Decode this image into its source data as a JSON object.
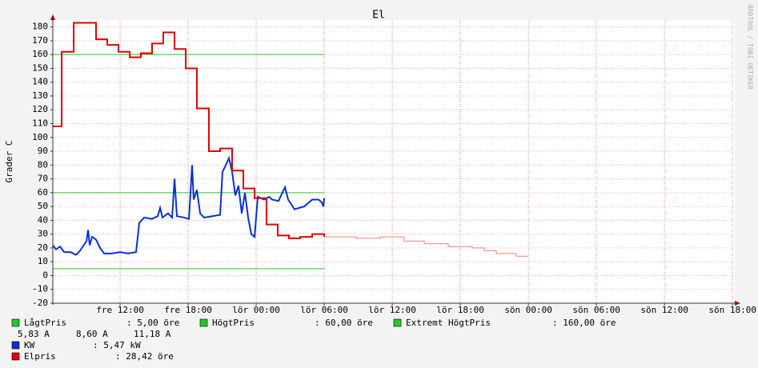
{
  "chart_data": {
    "type": "line",
    "title": "El",
    "y_label": "Grader C",
    "watermark": "RRDTOOL / TOBI OETIKER",
    "xlim": [
      6.07,
      66.2
    ],
    "ylim": [
      -20,
      185
    ],
    "xticks": [
      {
        "value": 12,
        "label": "fre 12:00"
      },
      {
        "value": 18,
        "label": "fre 18:00"
      },
      {
        "value": 24,
        "label": "lör 00:00"
      },
      {
        "value": 30,
        "label": "lör 06:00"
      },
      {
        "value": 36,
        "label": "lör 12:00"
      },
      {
        "value": 42,
        "label": "lör 18:00"
      },
      {
        "value": 48,
        "label": "sön 00:00"
      },
      {
        "value": 54,
        "label": "sön 06:00"
      },
      {
        "value": 60,
        "label": "sön 12:00"
      },
      {
        "value": 66,
        "label": "sön 18:00"
      }
    ],
    "yticks": [
      -20,
      -10,
      0,
      10,
      20,
      30,
      40,
      50,
      60,
      70,
      80,
      90,
      100,
      110,
      120,
      130,
      140,
      150,
      160,
      170,
      180
    ],
    "grid": true,
    "series": [
      {
        "name": "LågtPris",
        "legend_value": ": 5,00 öre",
        "color": "#22cc22",
        "x": [
          6.07,
          30.0
        ],
        "values": [
          5,
          5
        ]
      },
      {
        "name": "HögtPris",
        "legend_value": ": 60,00 öre",
        "color": "#22cc22",
        "x": [
          6.07,
          30.0
        ],
        "values": [
          60,
          60
        ]
      },
      {
        "name": "Extremt HögtPris",
        "legend_value": ": 160,00 öre",
        "color": "#22cc22",
        "x": [
          6.07,
          30.0
        ],
        "values": [
          160,
          160
        ]
      },
      {
        "name": "KW",
        "legend_value": ": 5,47 kW",
        "color": "#0a2ee0",
        "width": 2,
        "x": [
          6.07,
          6.35,
          6.71,
          7.06,
          7.62,
          8.12,
          8.47,
          9.04,
          9.18,
          9.32,
          9.53,
          9.88,
          10.24,
          10.59,
          11.29,
          12.0,
          12.71,
          13.41,
          13.69,
          14.12,
          14.82,
          15.32,
          15.53,
          15.74,
          16.23,
          16.59,
          16.8,
          17.01,
          17.65,
          18.07,
          18.21,
          18.35,
          18.49,
          18.77,
          19.06,
          19.41,
          20.12,
          20.82,
          21.03,
          21.32,
          21.6,
          21.88,
          22.16,
          22.44,
          22.73,
          23.01,
          23.29,
          23.57,
          23.86,
          24.14,
          24.7,
          25.13,
          25.41,
          25.97,
          26.54,
          26.82,
          27.38,
          28.23,
          28.94,
          29.5,
          29.78,
          29.93,
          30.0
        ],
        "values": [
          22,
          19,
          21,
          17,
          17,
          15,
          18,
          25,
          33,
          22,
          28,
          26,
          20,
          16,
          16,
          17,
          16,
          17,
          38,
          42,
          41,
          43,
          49,
          42,
          45,
          42,
          70,
          43,
          42,
          41,
          60,
          80,
          55,
          62,
          45,
          42,
          43,
          44,
          75,
          80,
          85,
          75,
          58,
          65,
          45,
          60,
          42,
          30,
          28,
          57,
          55,
          57,
          55,
          54,
          64,
          55,
          48,
          50,
          55,
          55,
          53,
          50,
          56
        ]
      },
      {
        "name": "Elpris",
        "legend_value": ": 28,42 öre",
        "color": "#e00000",
        "width": 2,
        "step": true,
        "x": [
          6.07,
          6.85,
          7.91,
          9.88,
          10.87,
          11.86,
          12.85,
          13.83,
          14.82,
          15.81,
          16.8,
          17.79,
          18.77,
          19.83,
          20.82,
          21.88,
          22.87,
          23.86,
          24.91,
          25.9,
          26.89,
          27.88,
          28.94,
          30.0
        ],
        "values": [
          108,
          162,
          183,
          171,
          167,
          162,
          158,
          161,
          168,
          176,
          164,
          150,
          121,
          90,
          92,
          76,
          63,
          56,
          37,
          29,
          27,
          28,
          30,
          28
        ]
      },
      {
        "color": "#f08080",
        "width": 1,
        "step": true,
        "x": [
          30.0,
          32.82,
          34.94,
          37.05,
          38.82,
          40.94,
          43.05,
          44.11,
          45.17,
          46.93,
          47.99
        ],
        "values": [
          28,
          27,
          28,
          25,
          23,
          21,
          20,
          18,
          16,
          14,
          14
        ]
      }
    ],
    "extra_legend": [
      "5,83 A",
      "8,60 A",
      "11,18 A"
    ]
  }
}
